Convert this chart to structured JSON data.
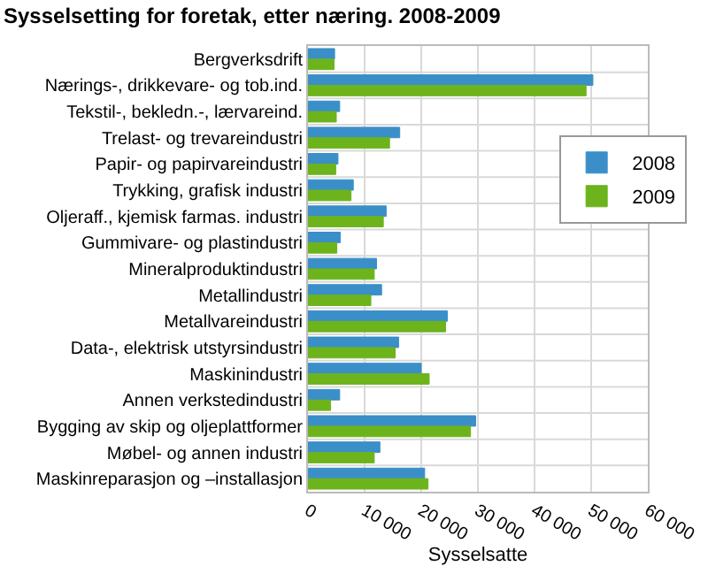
{
  "chart_data": {
    "type": "bar",
    "orientation": "horizontal",
    "title": "Sysselsetting for foretak, etter næring. 2008-2009",
    "xlabel": "Sysselsatte",
    "categories": [
      "Bergverksdrift",
      "Nærings-, drikkevare- og tob.ind.",
      "Tekstil-, bekledn.-, lærvareind.",
      "Trelast- og trevareindustri",
      "Papir- og papirvareindustri",
      "Trykking, grafisk industri",
      "Oljeraff., kjemisk farmas. industri",
      "Gummivare- og plastindustri",
      "Mineralproduktindustri",
      "Metallindustri",
      "Metallvareindustri",
      "Data-, elektrisk utstyrsindustri",
      "Maskinindustri",
      "Annen verkstedindustri",
      "Bygging av skip og oljeplattformer",
      "Møbel- og annen industri",
      "Maskinreparasjon og –installasjon"
    ],
    "series": [
      {
        "name": "2008",
        "color": "#3a8fc8",
        "values": [
          4700,
          50300,
          5600,
          16200,
          5300,
          8000,
          13800,
          5700,
          12100,
          13000,
          24600,
          16000,
          20000,
          5600,
          29600,
          12700,
          20600
        ]
      },
      {
        "name": "2009",
        "color": "#6db31c",
        "values": [
          4600,
          49100,
          5000,
          14400,
          4900,
          7600,
          13300,
          5100,
          11700,
          11100,
          24300,
          15400,
          21400,
          4000,
          28700,
          11700,
          21200
        ]
      }
    ],
    "xlim": [
      0,
      60000
    ],
    "xticks": [
      0,
      {
        "value": 10000,
        "label": "10 000"
      },
      {
        "value": 20000,
        "label": "20 000"
      },
      {
        "value": 30000,
        "label": "30 000"
      },
      {
        "value": 40000,
        "label": "40 000"
      },
      {
        "value": 50000,
        "label": "50 000"
      },
      {
        "value": 60000,
        "label": "60 000"
      }
    ],
    "grid": true,
    "legend": "right"
  }
}
